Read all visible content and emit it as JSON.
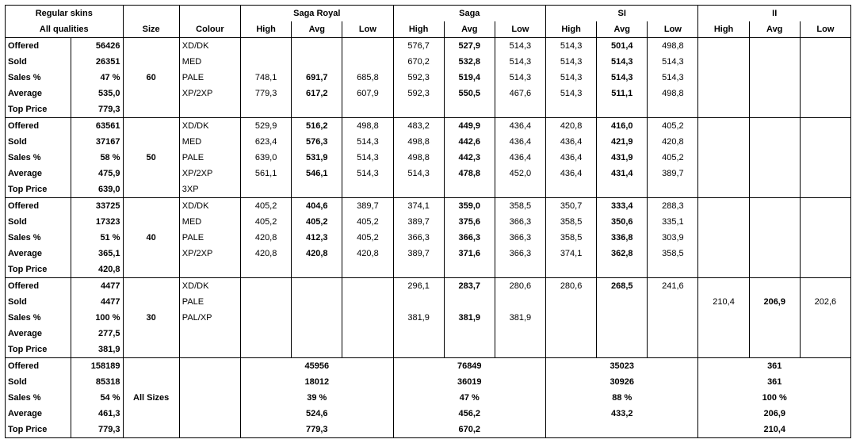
{
  "header": {
    "title1": "Regular skins",
    "title2": "All qualities",
    "size": "Size",
    "colour": "Colour",
    "groups": [
      "Saga Royal",
      "Saga",
      "SI",
      "II"
    ],
    "sub": [
      "High",
      "Avg",
      "Low"
    ]
  },
  "rowLabels": [
    "Offered",
    "Sold",
    "Sales %",
    "Average",
    "Top Price"
  ],
  "blocks": [
    {
      "size": "60",
      "summary": [
        "56426",
        "26351",
        "47 %",
        "535,0",
        "779,3"
      ],
      "rows": [
        {
          "colour": "XD/DK",
          "sr": [
            "",
            "",
            ""
          ],
          "sa": [
            "576,7",
            "527,9",
            "514,3"
          ],
          "si": [
            "514,3",
            "501,4",
            "498,8"
          ],
          "ii": [
            "",
            "",
            ""
          ]
        },
        {
          "colour": "MED",
          "sr": [
            "",
            "",
            ""
          ],
          "sa": [
            "670,2",
            "532,8",
            "514,3"
          ],
          "si": [
            "514,3",
            "514,3",
            "514,3"
          ],
          "ii": [
            "",
            "",
            ""
          ]
        },
        {
          "colour": "PALE",
          "sr": [
            "748,1",
            "691,7",
            "685,8"
          ],
          "sa": [
            "592,3",
            "519,4",
            "514,3"
          ],
          "si": [
            "514,3",
            "514,3",
            "514,3"
          ],
          "ii": [
            "",
            "",
            ""
          ]
        },
        {
          "colour": "XP/2XP",
          "sr": [
            "779,3",
            "617,2",
            "607,9"
          ],
          "sa": [
            "592,3",
            "550,5",
            "467,6"
          ],
          "si": [
            "514,3",
            "511,1",
            "498,8"
          ],
          "ii": [
            "",
            "",
            ""
          ]
        }
      ]
    },
    {
      "size": "50",
      "summary": [
        "63561",
        "37167",
        "58 %",
        "475,9",
        "639,0"
      ],
      "rows": [
        {
          "colour": "XD/DK",
          "sr": [
            "529,9",
            "516,2",
            "498,8"
          ],
          "sa": [
            "483,2",
            "449,9",
            "436,4"
          ],
          "si": [
            "420,8",
            "416,0",
            "405,2"
          ],
          "ii": [
            "",
            "",
            ""
          ]
        },
        {
          "colour": "MED",
          "sr": [
            "623,4",
            "576,3",
            "514,3"
          ],
          "sa": [
            "498,8",
            "442,6",
            "436,4"
          ],
          "si": [
            "436,4",
            "421,9",
            "420,8"
          ],
          "ii": [
            "",
            "",
            ""
          ]
        },
        {
          "colour": "PALE",
          "sr": [
            "639,0",
            "531,9",
            "514,3"
          ],
          "sa": [
            "498,8",
            "442,3",
            "436,4"
          ],
          "si": [
            "436,4",
            "431,9",
            "405,2"
          ],
          "ii": [
            "",
            "",
            ""
          ]
        },
        {
          "colour": "XP/2XP",
          "sr": [
            "561,1",
            "546,1",
            "514,3"
          ],
          "sa": [
            "514,3",
            "478,8",
            "452,0"
          ],
          "si": [
            "436,4",
            "431,4",
            "389,7"
          ],
          "ii": [
            "",
            "",
            ""
          ]
        },
        {
          "colour": "3XP",
          "sr": [
            "",
            "",
            ""
          ],
          "sa": [
            "",
            "",
            ""
          ],
          "si": [
            "",
            "",
            ""
          ],
          "ii": [
            "",
            "",
            ""
          ]
        }
      ]
    },
    {
      "size": "40",
      "summary": [
        "33725",
        "17323",
        "51 %",
        "365,1",
        "420,8"
      ],
      "rows": [
        {
          "colour": "XD/DK",
          "sr": [
            "405,2",
            "404,6",
            "389,7"
          ],
          "sa": [
            "374,1",
            "359,0",
            "358,5"
          ],
          "si": [
            "350,7",
            "333,4",
            "288,3"
          ],
          "ii": [
            "",
            "",
            ""
          ]
        },
        {
          "colour": "MED",
          "sr": [
            "405,2",
            "405,2",
            "405,2"
          ],
          "sa": [
            "389,7",
            "375,6",
            "366,3"
          ],
          "si": [
            "358,5",
            "350,6",
            "335,1"
          ],
          "ii": [
            "",
            "",
            ""
          ]
        },
        {
          "colour": "PALE",
          "sr": [
            "420,8",
            "412,3",
            "405,2"
          ],
          "sa": [
            "366,3",
            "366,3",
            "366,3"
          ],
          "si": [
            "358,5",
            "336,8",
            "303,9"
          ],
          "ii": [
            "",
            "",
            ""
          ]
        },
        {
          "colour": "XP/2XP",
          "sr": [
            "420,8",
            "420,8",
            "420,8"
          ],
          "sa": [
            "389,7",
            "371,6",
            "366,3"
          ],
          "si": [
            "374,1",
            "362,8",
            "358,5"
          ],
          "ii": [
            "",
            "",
            ""
          ]
        }
      ]
    },
    {
      "size": "30",
      "summary": [
        "4477",
        "4477",
        "100 %",
        "277,5",
        "381,9"
      ],
      "rows": [
        {
          "colour": "XD/DK",
          "sr": [
            "",
            "",
            ""
          ],
          "sa": [
            "296,1",
            "283,7",
            "280,6"
          ],
          "si": [
            "280,6",
            "268,5",
            "241,6"
          ],
          "ii": [
            "",
            "",
            ""
          ]
        },
        {
          "colour": "PALE",
          "sr": [
            "",
            "",
            ""
          ],
          "sa": [
            "",
            "",
            ""
          ],
          "si": [
            "",
            "",
            ""
          ],
          "ii": [
            "210,4",
            "206,9",
            "202,6"
          ]
        },
        {
          "colour": "PAL/XP",
          "sr": [
            "",
            "",
            ""
          ],
          "sa": [
            "381,9",
            "381,9",
            "381,9"
          ],
          "si": [
            "",
            "",
            ""
          ],
          "ii": [
            "",
            "",
            ""
          ]
        }
      ]
    }
  ],
  "totals": {
    "size": "All Sizes",
    "summary": [
      "158189",
      "85318",
      "54 %",
      "461,3",
      "779,3"
    ],
    "groups": [
      [
        "45956",
        "18012",
        "39 %",
        "524,6",
        "779,3"
      ],
      [
        "76849",
        "36019",
        "47 %",
        "456,2",
        "670,2"
      ],
      [
        "35023",
        "30926",
        "88 %",
        "433,2",
        ""
      ],
      [
        "361",
        "361",
        "100 %",
        "206,9",
        "210,4"
      ]
    ]
  }
}
